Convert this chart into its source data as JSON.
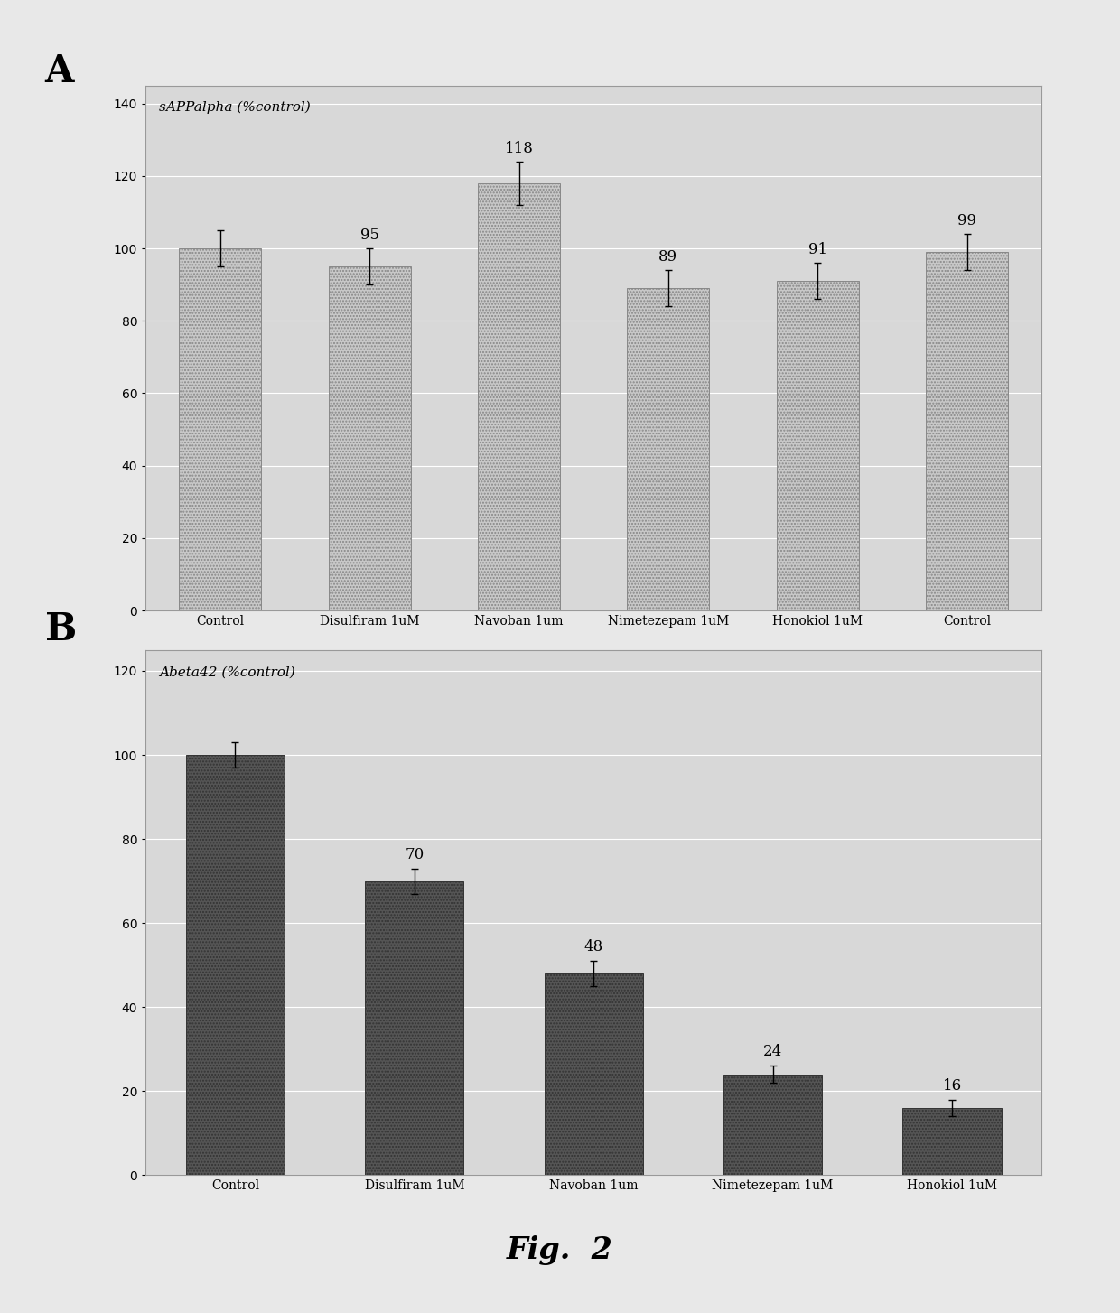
{
  "panel_A": {
    "categories": [
      "Control",
      "Disulfiram 1uM",
      "Navoban 1um",
      "Nimetezepam 1uM",
      "Honokiol 1uM",
      "Control"
    ],
    "values": [
      100,
      95,
      118,
      89,
      91,
      99
    ],
    "errors": [
      5,
      5,
      6,
      5,
      5,
      5
    ],
    "bar_color": "#c8c8c8",
    "bar_edgecolor": "#888888",
    "ylabel_text": "sAPPalpha (%control)",
    "ylim": [
      0,
      145
    ],
    "yticks": [
      0,
      20,
      40,
      60,
      80,
      100,
      120,
      140
    ],
    "label": "A",
    "show_value_labels": [
      false,
      true,
      true,
      true,
      true,
      true
    ]
  },
  "panel_B": {
    "categories": [
      "Control",
      "Disulfiram 1uM",
      "Navoban 1um",
      "Nimetezepam 1uM",
      "Honokiol 1uM"
    ],
    "values": [
      100,
      70,
      48,
      24,
      16
    ],
    "errors": [
      3,
      3,
      3,
      2,
      2
    ],
    "bar_color": "#555555",
    "bar_edgecolor": "#333333",
    "ylabel_text": "Abeta42 (%control)",
    "ylim": [
      0,
      125
    ],
    "yticks": [
      0,
      20,
      40,
      60,
      80,
      100,
      120
    ],
    "label": "B",
    "show_value_labels": [
      false,
      true,
      true,
      true,
      true
    ]
  },
  "figure_label": "Fig.  2",
  "background_color": "#e8e8e8",
  "plot_bg_color": "#d8d8d8",
  "grid_color": "#ffffff",
  "bar_width": 0.55,
  "fontsize_value": 12,
  "fontsize_tick": 10,
  "fontsize_panel_label": 30,
  "fontsize_fig_label": 24,
  "fontsize_ylabel": 11
}
